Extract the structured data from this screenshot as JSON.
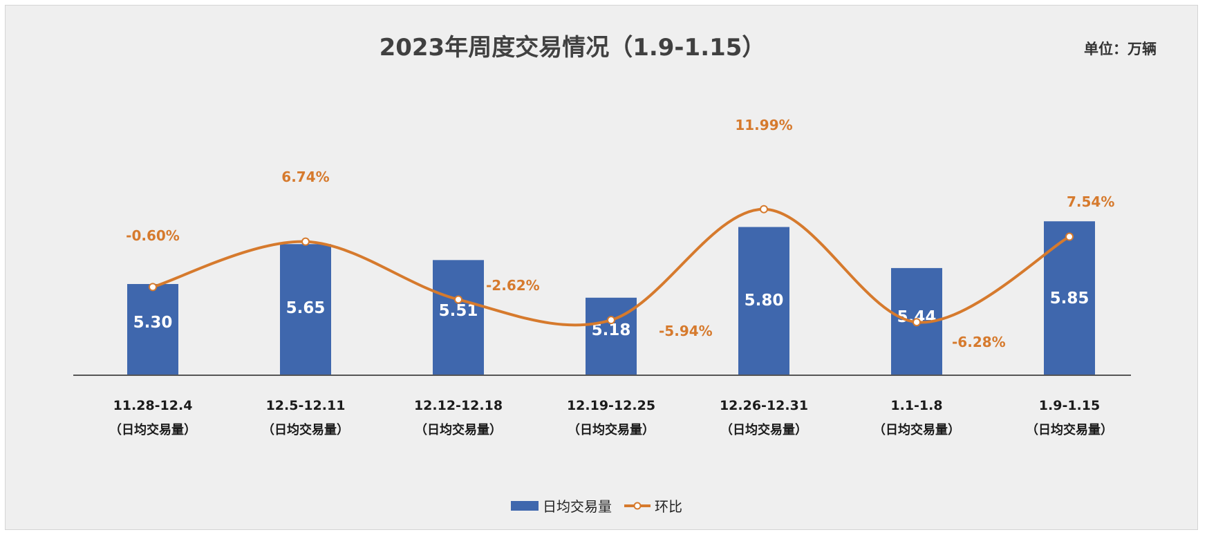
{
  "title": "2023年周度交易情况（1.9-1.15）",
  "unit_label": "单位：万辆",
  "colors": {
    "bar": "#3f67ad",
    "line": "#d67a2d",
    "pct_label": "#d67a2d",
    "axis": "#555555"
  },
  "chart_data": {
    "type": "bar",
    "categories": [
      "11.28-12.4",
      "12.5-12.11",
      "12.12-12.18",
      "12.19-12.25",
      "12.26-12.31",
      "1.1-1.8",
      "1.9-1.15"
    ],
    "category_sublabel": "（日均交易量）",
    "series": [
      {
        "name": "日均交易量",
        "type": "bar",
        "values": [
          5.3,
          5.65,
          5.51,
          5.18,
          5.8,
          5.44,
          5.85
        ],
        "labels": [
          "5.30",
          "5.65",
          "5.51",
          "5.18",
          "5.80",
          "5.44",
          "5.85"
        ]
      },
      {
        "name": "环比",
        "type": "line",
        "smooth": true,
        "values": [
          -0.6,
          6.74,
          -2.62,
          -5.94,
          11.99,
          -6.28,
          7.54
        ],
        "labels": [
          "-0.60%",
          "6.74%",
          "-2.62%",
          "-5.94%",
          "11.99%",
          "-6.28%",
          "7.54%"
        ]
      }
    ],
    "legend": [
      "日均交易量",
      "环比"
    ],
    "legend_position": "bottom",
    "grid": false
  }
}
